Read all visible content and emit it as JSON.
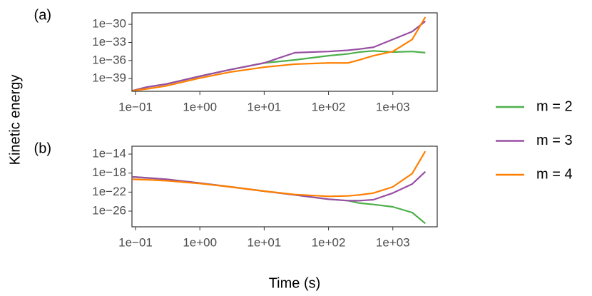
{
  "xlabel": "Time (s)",
  "ylabel": "Kinetic energy",
  "chart_data": [
    {
      "type": "line",
      "panel": "(a)",
      "xlog": true,
      "ylog": true,
      "x": [
        0.09,
        0.15,
        0.3,
        1,
        3,
        10,
        30,
        100,
        200,
        300,
        500,
        1000,
        2000,
        3200
      ],
      "xlim": [
        0.088,
        4900
      ],
      "xticks": [
        {
          "value": 0.1,
          "label": "1e−01"
        },
        {
          "value": 1,
          "label": "1e+00"
        },
        {
          "value": 10,
          "label": "1e+01"
        },
        {
          "value": 100,
          "label": "1e+02"
        },
        {
          "value": 1000,
          "label": "1e+03"
        }
      ],
      "ylim": [
        8e-42,
        8e-29
      ],
      "yticks": [
        {
          "value": 1e-39,
          "label": "1e−39"
        },
        {
          "value": 1e-36,
          "label": "1e−36"
        },
        {
          "value": 1e-33,
          "label": "1e−33"
        },
        {
          "value": 1e-30,
          "label": "1e−30"
        }
      ],
      "series": [
        {
          "name": "m = 2",
          "color": "#4daf4a",
          "values": [
            1e-41,
            3.98e-41,
            1.26e-40,
            2.51e-39,
            3.16e-38,
            3.98e-37,
            1.26e-36,
            6.31e-36,
            1.26e-35,
            2.51e-35,
            3.98e-35,
            2.51e-35,
            3.16e-35,
            2e-35
          ]
        },
        {
          "name": "m = 3",
          "color": "#984ea3",
          "values": [
            1e-41,
            3.98e-41,
            1.26e-40,
            2.51e-39,
            3.16e-38,
            3.98e-37,
            2e-35,
            3.16e-35,
            5.01e-35,
            7.94e-35,
            1.58e-34,
            3.16e-33,
            6.31e-32,
            3.16e-30
          ]
        },
        {
          "name": "m = 4",
          "color": "#ff7f00",
          "values": [
            1e-41,
            2e-41,
            6.31e-41,
            1.26e-39,
            1.26e-38,
            7.94e-38,
            2.51e-37,
            3.98e-37,
            3.98e-37,
            1.26e-36,
            6.31e-36,
            3.16e-35,
            3.16e-33,
            1.58e-29
          ]
        }
      ]
    },
    {
      "type": "line",
      "panel": "(b)",
      "xlog": true,
      "ylog": true,
      "x": [
        0.09,
        0.15,
        0.3,
        1,
        3,
        10,
        30,
        100,
        200,
        300,
        500,
        1000,
        2000,
        3200
      ],
      "xlim": [
        0.088,
        4900
      ],
      "xticks": [
        {
          "value": 0.1,
          "label": "1e−01"
        },
        {
          "value": 1,
          "label": "1e+00"
        },
        {
          "value": 10,
          "label": "1e+01"
        },
        {
          "value": 100,
          "label": "1e+02"
        },
        {
          "value": 1000,
          "label": "1e+03"
        }
      ],
      "ylim": [
        5e-30,
        4.5e-13
      ],
      "yticks": [
        {
          "value": 1e-26,
          "label": "1e−26"
        },
        {
          "value": 1e-22,
          "label": "1e−22"
        },
        {
          "value": 1e-18,
          "label": "1e−18"
        },
        {
          "value": 1e-14,
          "label": "1e−14"
        }
      ],
      "series": [
        {
          "name": "m = 2",
          "color": "#4daf4a",
          "values": [
            1.58e-19,
            1e-19,
            5.01e-20,
            7.94e-21,
            1.26e-21,
            1.58e-22,
            2.51e-23,
            3.16e-24,
            1.58e-24,
            5.01e-25,
            2.51e-25,
            7.94e-26,
            5.01e-27,
            2.51e-29
          ]
        },
        {
          "name": "m = 3",
          "color": "#984ea3",
          "values": [
            1.58e-19,
            1e-19,
            5.01e-20,
            7.94e-21,
            1.26e-21,
            1.58e-22,
            2.51e-23,
            3.16e-24,
            1.58e-24,
            1.58e-24,
            2.51e-24,
            6.31e-23,
            5.01e-21,
            2e-18
          ]
        },
        {
          "name": "m = 4",
          "color": "#ff7f00",
          "values": [
            5.01e-20,
            3.98e-20,
            2.51e-20,
            6.31e-21,
            1.26e-21,
            1.58e-22,
            3.16e-23,
            1.26e-23,
            1.58e-23,
            2.51e-23,
            6.31e-23,
            1.26e-21,
            7.94e-19,
            3.98e-14
          ]
        }
      ]
    }
  ]
}
